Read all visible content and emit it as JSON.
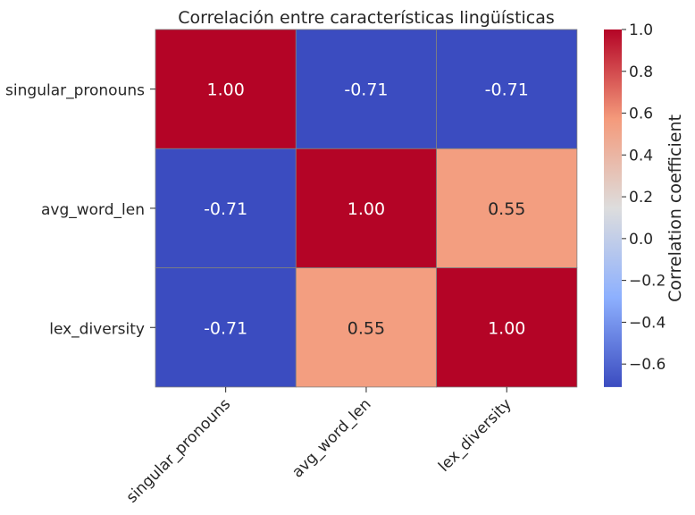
{
  "chart_data": {
    "type": "heatmap",
    "title": "Correlación entre características lingüísticas",
    "rows": [
      "singular_pronouns",
      "avg_word_len",
      "lex_diversity"
    ],
    "cols": [
      "singular_pronouns",
      "avg_word_len",
      "lex_diversity"
    ],
    "values": [
      [
        1.0,
        -0.71,
        -0.71
      ],
      [
        -0.71,
        1.0,
        0.55
      ],
      [
        -0.71,
        0.55,
        1.0
      ]
    ],
    "cell_labels": [
      [
        "1.00",
        "-0.71",
        "-0.71"
      ],
      [
        "-0.71",
        "1.00",
        "0.55"
      ],
      [
        "-0.71",
        "0.55",
        "1.00"
      ]
    ],
    "colormap": "coolwarm",
    "vmin": -0.71,
    "vmax": 1.0,
    "colorbar": {
      "label": "Correlation coefficient",
      "ticks": [
        1.0,
        0.8,
        0.6,
        0.4,
        0.2,
        0.0,
        -0.2,
        -0.4,
        -0.6
      ],
      "tick_labels": [
        "1.0",
        "0.8",
        "0.6",
        "0.4",
        "0.2",
        "0.0",
        "−0.2",
        "−0.4",
        "−0.6"
      ]
    },
    "grid_line_color": "#808080"
  }
}
